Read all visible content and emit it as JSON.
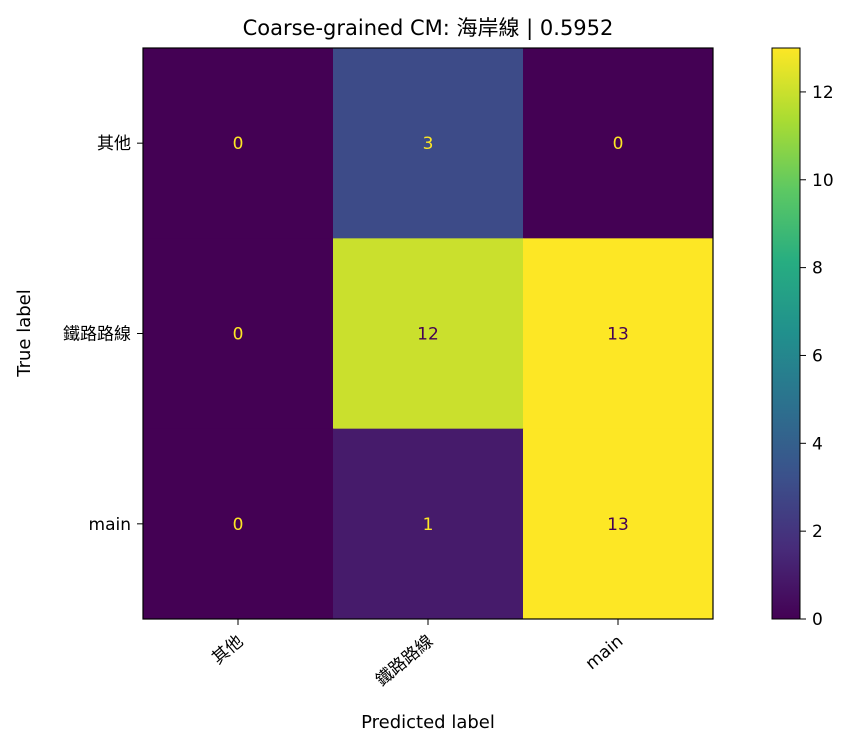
{
  "chart_data": {
    "type": "heatmap",
    "title": "Coarse-grained CM: 海岸線 | 0.5952",
    "xlabel": "Predicted label",
    "ylabel": "True label",
    "x_categories": [
      "其他",
      "鐵路路線",
      "main"
    ],
    "y_categories": [
      "其他",
      "鐵路路線",
      "main"
    ],
    "values": [
      [
        0,
        3,
        0
      ],
      [
        0,
        12,
        13
      ],
      [
        0,
        1,
        13
      ]
    ],
    "colormap": "viridis",
    "colorbar": {
      "range": [
        0,
        13
      ],
      "ticks": [
        0,
        2,
        4,
        6,
        8,
        10,
        12
      ]
    },
    "text_colors": {
      "dark_cell": "#fde725",
      "light_cell": "#440154"
    }
  }
}
